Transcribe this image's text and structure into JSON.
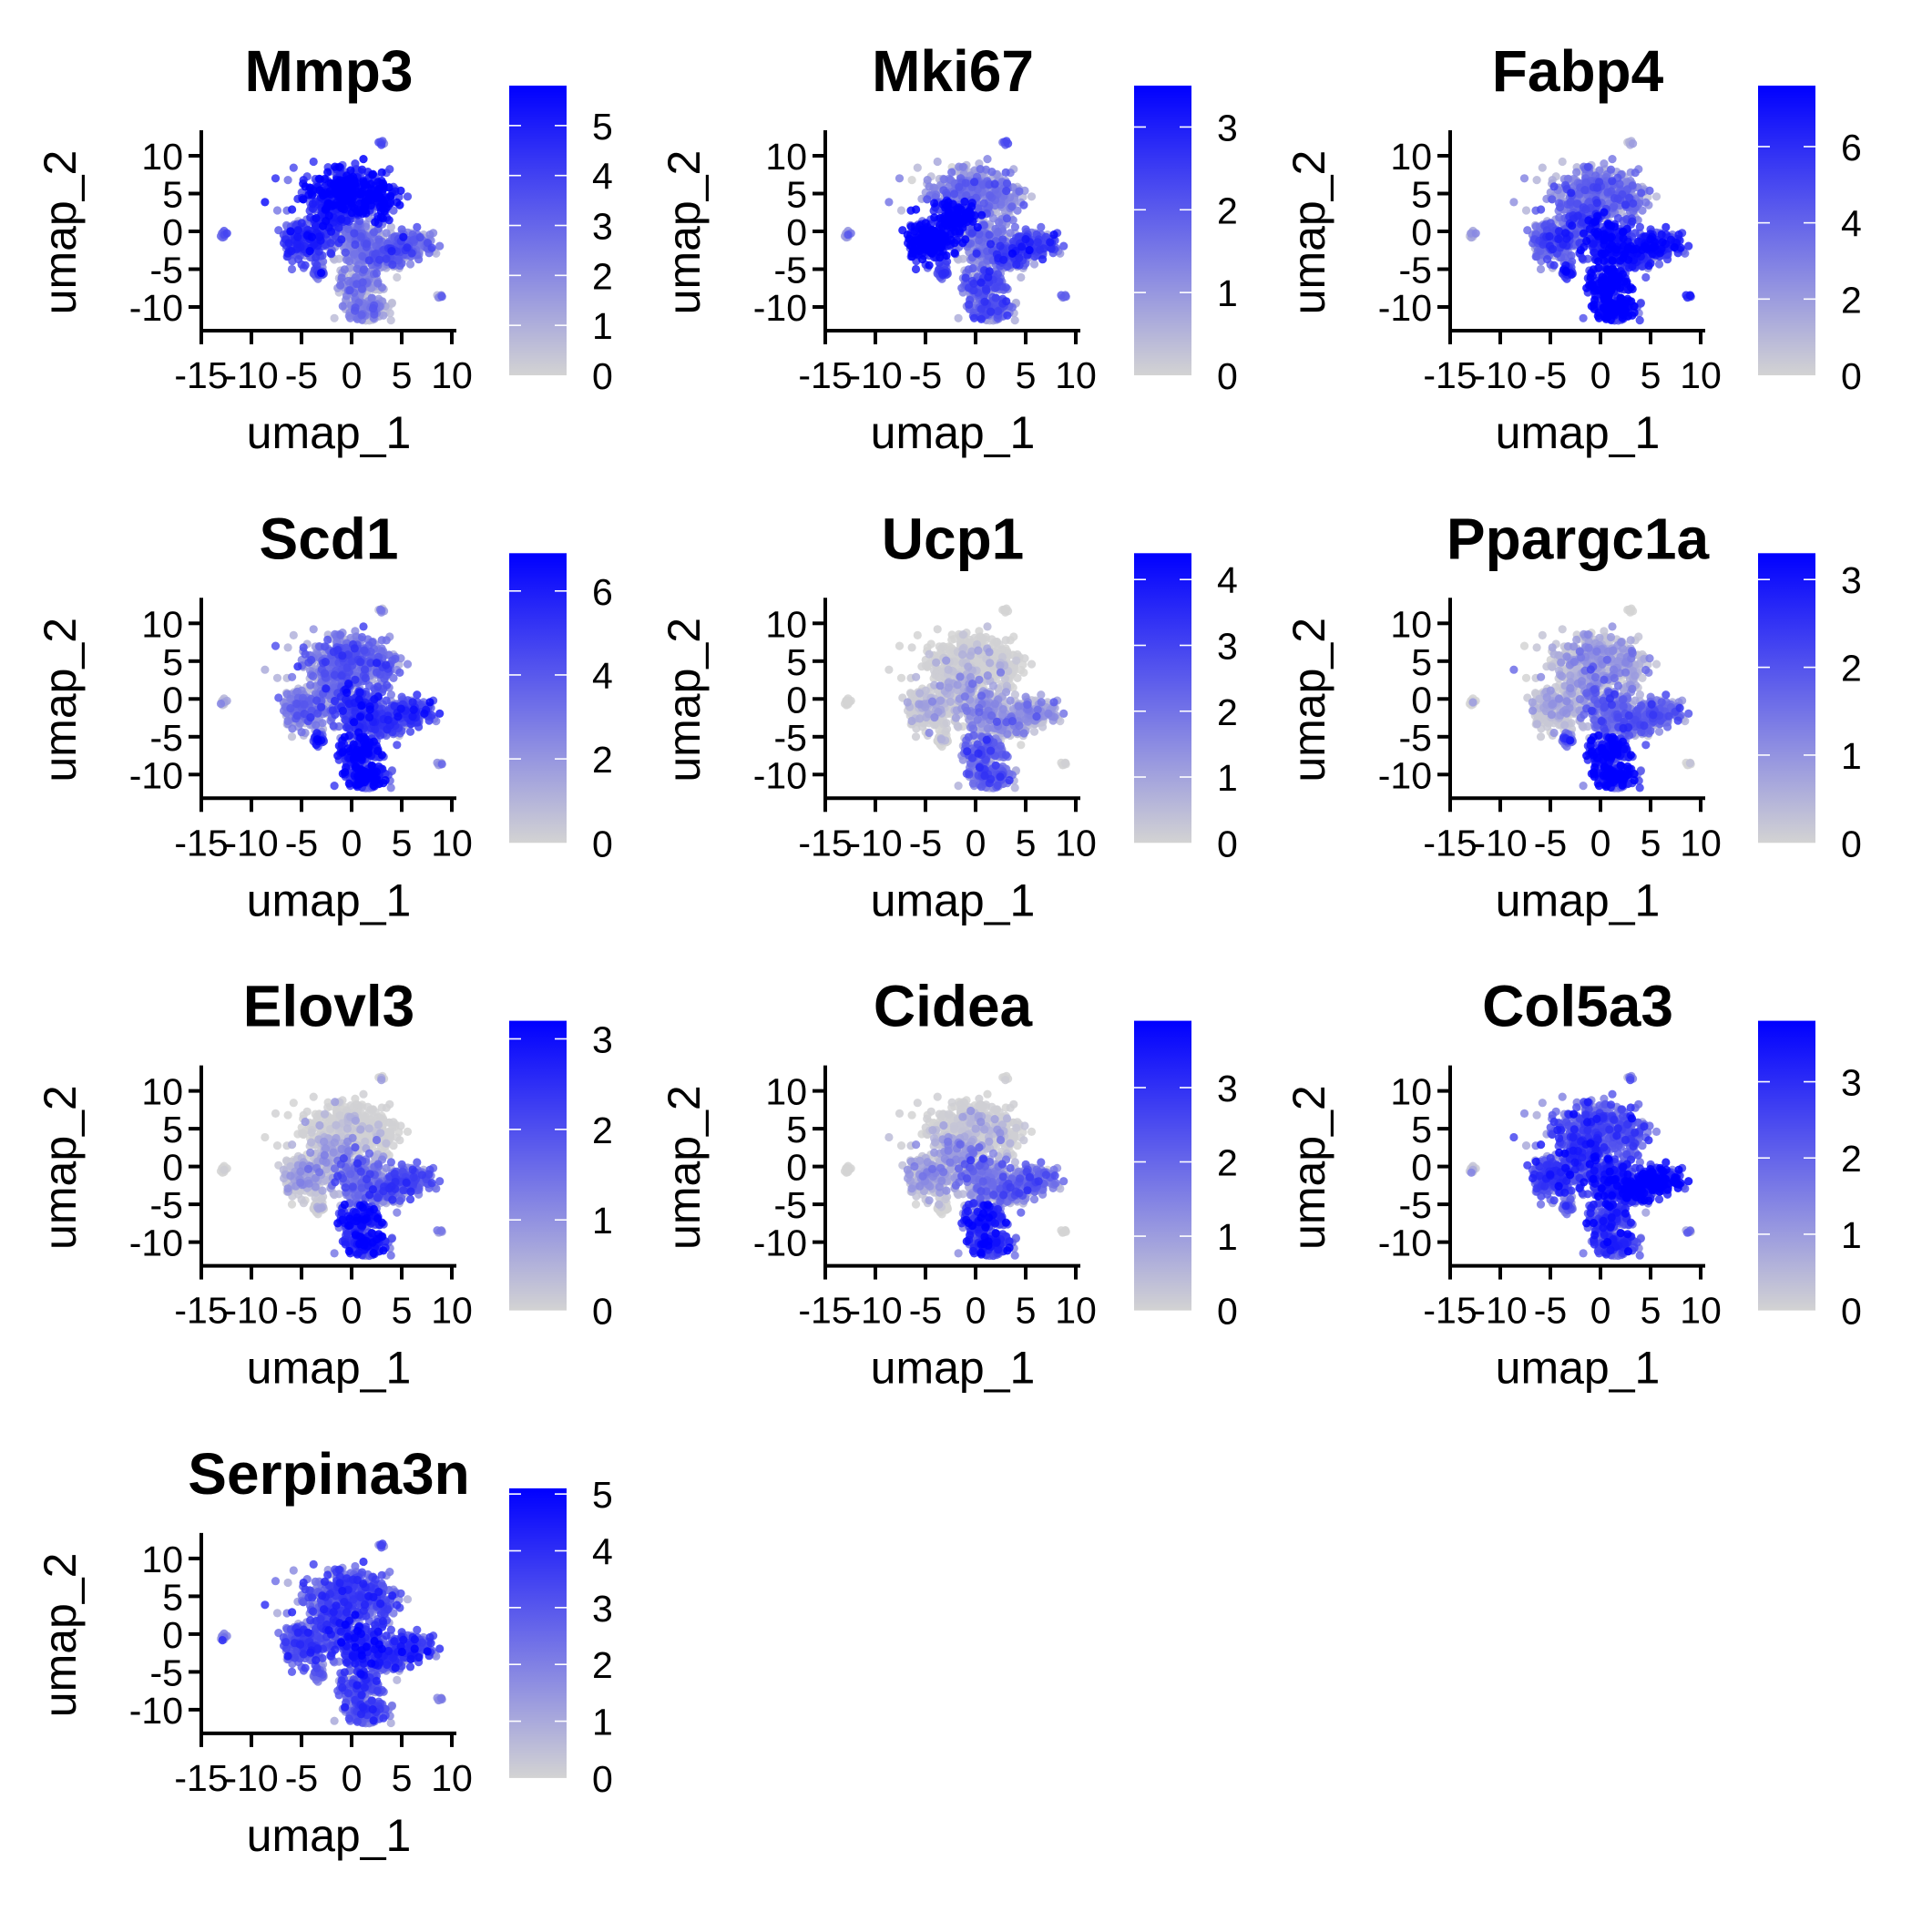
{
  "figure": {
    "description": "Seurat FeaturePlot grid of gene expression on UMAP embedding",
    "layout_columns": 3
  },
  "chart_data": {
    "type": "scatter",
    "subtype": "feature_plot_grid",
    "color_scale": {
      "low": "#D3D3D3",
      "high": "#0000FF"
    },
    "point_cloud": {
      "description": "same cell embedding in every panel: main cluster with upper dome, left lobe, right arm and lower lobe, a small satellite near (-3.3,-5.5), and outlier clusters near (-12.8,-0.4), (2.9,11.6), (8.8,-8.5)",
      "regions": [
        {
          "name": "upper-dome",
          "center": [
            -0.8,
            5.5
          ]
        },
        {
          "name": "left-lobe",
          "center": [
            -5.0,
            -1.2
          ]
        },
        {
          "name": "center",
          "center": [
            0.8,
            -2.0
          ]
        },
        {
          "name": "right-arm",
          "center": [
            6.0,
            -2.0
          ]
        },
        {
          "name": "lower-lobe",
          "center": [
            1.5,
            -9.8
          ]
        },
        {
          "name": "satellite",
          "center": [
            -3.3,
            -5.5
          ]
        },
        {
          "name": "outlier-left",
          "center": [
            -12.8,
            -0.4
          ]
        },
        {
          "name": "outlier-top",
          "center": [
            2.9,
            11.6
          ]
        },
        {
          "name": "outlier-right",
          "center": [
            8.8,
            -8.5
          ]
        }
      ]
    },
    "panels": [
      {
        "title": "Mmp3",
        "xlabel": "umap_1",
        "ylabel": "umap_2",
        "xticks": [
          "-15",
          "-10",
          "-5",
          "0",
          "5",
          "10"
        ],
        "yticks": [
          "10",
          "5",
          "0",
          "-5",
          "-10"
        ],
        "xlim": [
          -15,
          10.3
        ],
        "ylim": [
          -13.2,
          13.3
        ],
        "colorbar": {
          "min": 0,
          "max": 5.8,
          "ticks": [
            "0",
            "1",
            "2",
            "3",
            "4",
            "5"
          ]
        },
        "high_expression_regions": {
          "upper-dome": 0.9,
          "left-lobe": 0.65,
          "center": 0.35,
          "right-arm": 0.45,
          "lower-lobe": 0.3,
          "satellite": 0.55,
          "outlier-left": 0.5,
          "outlier-top": 0.5,
          "outlier-right": 0.45
        }
      },
      {
        "title": "Mki67",
        "xlabel": "umap_1",
        "ylabel": "umap_2",
        "xticks": [
          "-15",
          "-10",
          "-5",
          "0",
          "5",
          "10"
        ],
        "yticks": [
          "10",
          "5",
          "0",
          "-5",
          "-10"
        ],
        "xlim": [
          -15,
          10.3
        ],
        "ylim": [
          -13.2,
          13.3
        ],
        "colorbar": {
          "min": 0,
          "max": 3.5,
          "ticks": [
            "0",
            "1",
            "2",
            "3"
          ]
        },
        "high_expression_regions": {
          "upper-dome": 0.35,
          "left-lobe": 0.95,
          "center": 0.35,
          "right-arm": 0.55,
          "lower-lobe": 0.5,
          "satellite": 0.6,
          "outlier-left": 0.3,
          "outlier-top": 0.55,
          "outlier-right": 0.5
        }
      },
      {
        "title": "Fabp4",
        "xlabel": "umap_1",
        "ylabel": "umap_2",
        "xticks": [
          "-15",
          "-10",
          "-5",
          "0",
          "5",
          "10"
        ],
        "yticks": [
          "10",
          "5",
          "0",
          "-5",
          "-10"
        ],
        "xlim": [
          -15,
          10.3
        ],
        "ylim": [
          -13.2,
          13.3
        ],
        "colorbar": {
          "min": 0,
          "max": 7.6,
          "ticks": [
            "0",
            "2",
            "4",
            "6"
          ]
        },
        "high_expression_regions": {
          "upper-dome": 0.4,
          "left-lobe": 0.5,
          "center": 0.8,
          "right-arm": 0.75,
          "lower-lobe": 0.95,
          "satellite": 0.75,
          "outlier-left": 0.2,
          "outlier-top": 0.2,
          "outlier-right": 0.75
        }
      },
      {
        "title": "Scd1",
        "xlabel": "umap_1",
        "ylabel": "umap_2",
        "xticks": [
          "-15",
          "-10",
          "-5",
          "0",
          "5",
          "10"
        ],
        "yticks": [
          "10",
          "5",
          "0",
          "-5",
          "-10"
        ],
        "xlim": [
          -15,
          10.3
        ],
        "ylim": [
          -13.2,
          13.3
        ],
        "colorbar": {
          "min": 0,
          "max": 6.9,
          "ticks": [
            "0",
            "2",
            "4",
            "6"
          ]
        },
        "high_expression_regions": {
          "upper-dome": 0.45,
          "left-lobe": 0.35,
          "center": 0.65,
          "right-arm": 0.6,
          "lower-lobe": 0.85,
          "satellite": 0.75,
          "outlier-left": 0.15,
          "outlier-top": 0.3,
          "outlier-right": 0.35
        }
      },
      {
        "title": "Ucp1",
        "xlabel": "umap_1",
        "ylabel": "umap_2",
        "xticks": [
          "-15",
          "-10",
          "-5",
          "0",
          "5",
          "10"
        ],
        "yticks": [
          "10",
          "5",
          "0",
          "-5",
          "-10"
        ],
        "xlim": [
          -15,
          10.3
        ],
        "ylim": [
          -13.2,
          13.3
        ],
        "colorbar": {
          "min": 0,
          "max": 4.4,
          "ticks": [
            "0",
            "1",
            "2",
            "3",
            "4"
          ]
        },
        "high_expression_regions": {
          "upper-dome": 0.03,
          "left-lobe": 0.08,
          "center": 0.25,
          "right-arm": 0.25,
          "lower-lobe": 0.45,
          "satellite": 0.0,
          "outlier-left": 0.0,
          "outlier-top": 0.0,
          "outlier-right": 0.0
        }
      },
      {
        "title": "Ppargc1a",
        "xlabel": "umap_1",
        "ylabel": "umap_2",
        "xticks": [
          "-15",
          "-10",
          "-5",
          "0",
          "5",
          "10"
        ],
        "yticks": [
          "10",
          "5",
          "0",
          "-5",
          "-10"
        ],
        "xlim": [
          -15,
          10.3
        ],
        "ylim": [
          -13.2,
          13.3
        ],
        "colorbar": {
          "min": 0,
          "max": 3.3,
          "ticks": [
            "0",
            "1",
            "2",
            "3"
          ]
        },
        "high_expression_regions": {
          "upper-dome": 0.2,
          "left-lobe": 0.15,
          "center": 0.4,
          "right-arm": 0.45,
          "lower-lobe": 0.85,
          "satellite": 0.5,
          "outlier-left": 0.0,
          "outlier-top": 0.0,
          "outlier-right": 0.0
        }
      },
      {
        "title": "Elovl3",
        "xlabel": "umap_1",
        "ylabel": "umap_2",
        "xticks": [
          "-15",
          "-10",
          "-5",
          "0",
          "5",
          "10"
        ],
        "yticks": [
          "10",
          "5",
          "0",
          "-5",
          "-10"
        ],
        "xlim": [
          -15,
          10.3
        ],
        "ylim": [
          -13.2,
          13.3
        ],
        "colorbar": {
          "min": 0,
          "max": 3.2,
          "ticks": [
            "0",
            "1",
            "2",
            "3"
          ]
        },
        "high_expression_regions": {
          "upper-dome": 0.03,
          "left-lobe": 0.15,
          "center": 0.4,
          "right-arm": 0.5,
          "lower-lobe": 0.75,
          "satellite": 0.05,
          "outlier-left": 0.0,
          "outlier-top": 0.0,
          "outlier-right": 0.4
        }
      },
      {
        "title": "Cidea",
        "xlabel": "umap_1",
        "ylabel": "umap_2",
        "xticks": [
          "-15",
          "-10",
          "-5",
          "0",
          "5",
          "10"
        ],
        "yticks": [
          "10",
          "5",
          "0",
          "-5",
          "-10"
        ],
        "xlim": [
          -15,
          10.3
        ],
        "ylim": [
          -13.2,
          13.3
        ],
        "colorbar": {
          "min": 0,
          "max": 3.9,
          "ticks": [
            "0",
            "1",
            "2",
            "3"
          ]
        },
        "high_expression_regions": {
          "upper-dome": 0.06,
          "left-lobe": 0.2,
          "center": 0.35,
          "right-arm": 0.4,
          "lower-lobe": 0.7,
          "satellite": 0.0,
          "outlier-left": 0.0,
          "outlier-top": 0.0,
          "outlier-right": 0.0
        }
      },
      {
        "title": "Col5a3",
        "xlabel": "umap_1",
        "ylabel": "umap_2",
        "xticks": [
          "-15",
          "-10",
          "-5",
          "0",
          "5",
          "10"
        ],
        "yticks": [
          "10",
          "5",
          "0",
          "-5",
          "-10"
        ],
        "xlim": [
          -15,
          10.3
        ],
        "ylim": [
          -13.2,
          13.3
        ],
        "colorbar": {
          "min": 0,
          "max": 3.8,
          "ticks": [
            "0",
            "1",
            "2",
            "3"
          ]
        },
        "high_expression_regions": {
          "upper-dome": 0.55,
          "left-lobe": 0.6,
          "center": 0.75,
          "right-arm": 0.9,
          "lower-lobe": 0.65,
          "satellite": 0.45,
          "outlier-left": 0.1,
          "outlier-top": 0.35,
          "outlier-right": 0.45
        }
      },
      {
        "title": "Serpina3n",
        "xlabel": "umap_1",
        "ylabel": "umap_2",
        "xticks": [
          "-15",
          "-10",
          "-5",
          "0",
          "5",
          "10"
        ],
        "yticks": [
          "10",
          "5",
          "0",
          "-5",
          "-10"
        ],
        "xlim": [
          -15,
          10.3
        ],
        "ylim": [
          -13.2,
          13.3
        ],
        "colorbar": {
          "min": 0,
          "max": 5.1,
          "ticks": [
            "0",
            "1",
            "2",
            "3",
            "4",
            "5"
          ]
        },
        "high_expression_regions": {
          "upper-dome": 0.55,
          "left-lobe": 0.55,
          "center": 0.7,
          "right-arm": 0.6,
          "lower-lobe": 0.55,
          "satellite": 0.45,
          "outlier-left": 0.4,
          "outlier-top": 0.45,
          "outlier-right": 0.3
        }
      }
    ]
  }
}
